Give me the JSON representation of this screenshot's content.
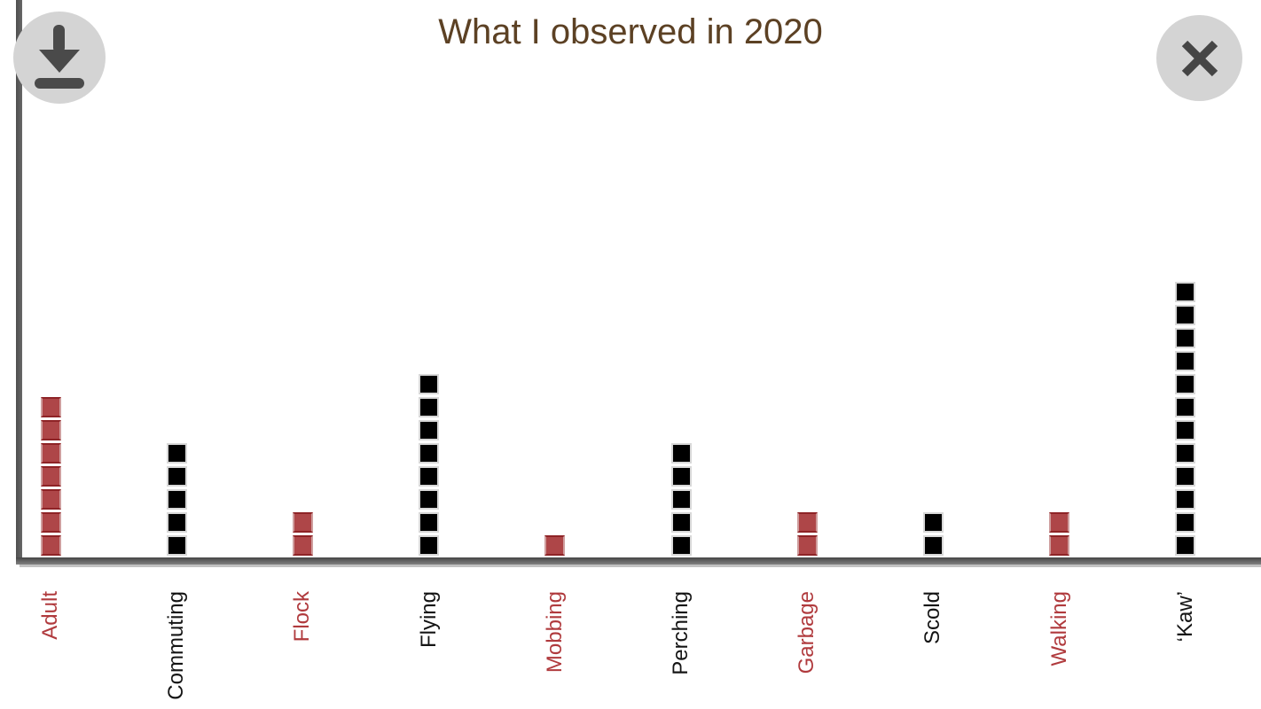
{
  "title": "What I observed in 2020",
  "toolbar": {
    "download_icon": "download-icon",
    "close_icon": "close-icon"
  },
  "colors": {
    "title_text": "#5c4124",
    "red_square_fill": "#ae4648",
    "red_square_edge": "#8e2326",
    "black_square_fill": "#000000",
    "square_light_edge": "#d8d8d8",
    "red_label": "#b03a3d",
    "black_label": "#141414",
    "axis_gray": "#5a5a5a",
    "button_gray": "#d4d4d4",
    "icon_gray": "#4a4a4a"
  },
  "chart_data": {
    "type": "bar",
    "subtype": "unit-square-pictograph",
    "title": "What I observed in 2020",
    "xlabel": "",
    "ylabel": "",
    "grid": false,
    "legend": false,
    "ylim": [
      0,
      12
    ],
    "categories": [
      "Adult",
      "Commuting",
      "Flock",
      "Flying",
      "Mobbing",
      "Perching",
      "Garbage",
      "Scold",
      "Walking",
      "‘Kaw’"
    ],
    "values": [
      7,
      5,
      2,
      8,
      1,
      5,
      2,
      2,
      2,
      12
    ],
    "bar_color_names": [
      "red",
      "black",
      "red",
      "black",
      "red",
      "black",
      "red",
      "black",
      "red",
      "black"
    ],
    "tick_label_orientation": "rotated 90° (reads bottom to top)",
    "axis_lines": "gray left and bottom spines, no ticks, no y-axis labels"
  }
}
